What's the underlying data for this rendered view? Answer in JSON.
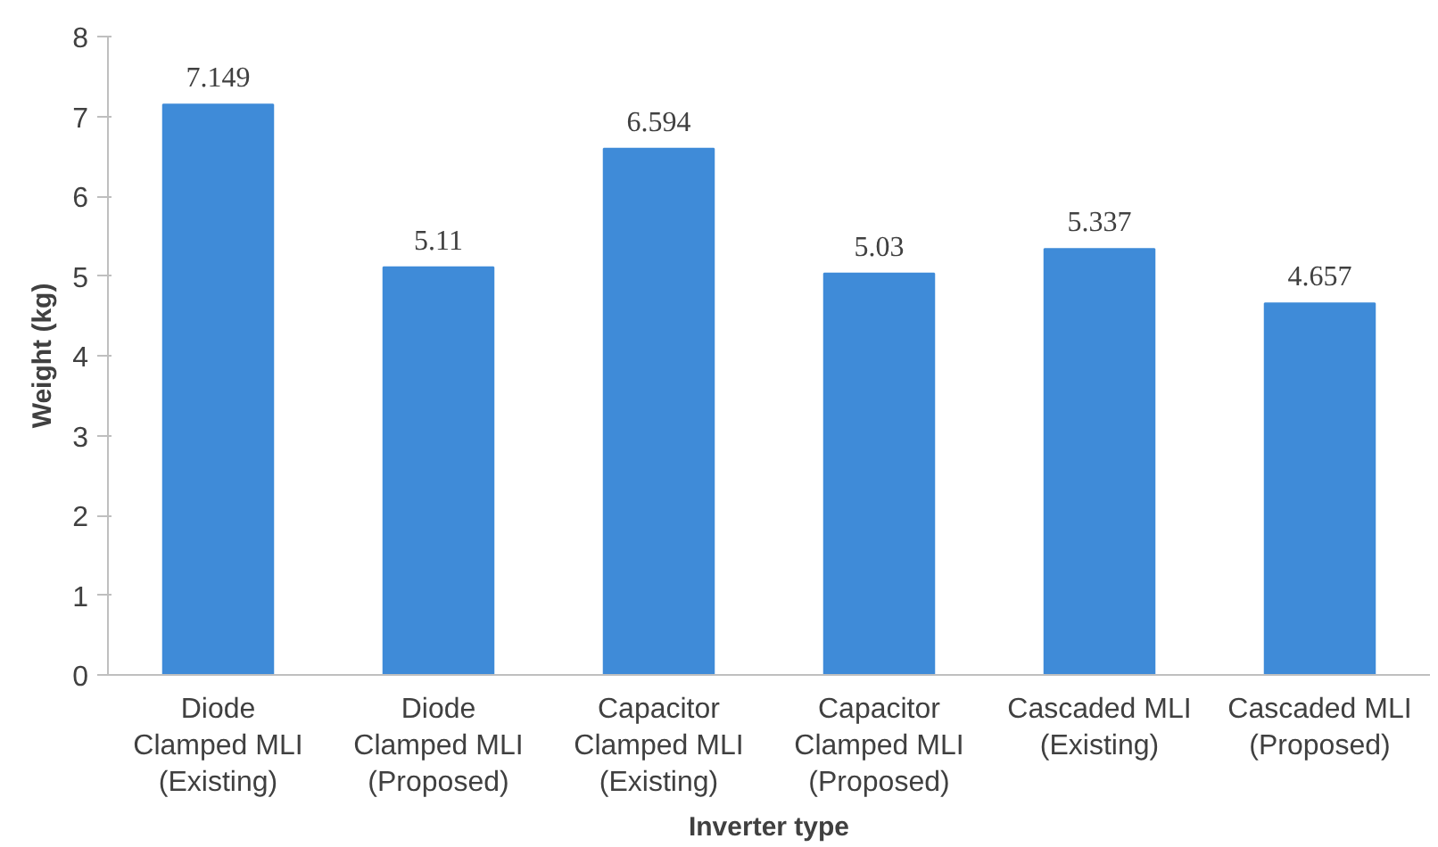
{
  "chart_data": {
    "type": "bar",
    "xlabel": "Inverter type",
    "ylabel": "Weight (kg)",
    "categories": [
      "Diode Clamped MLI (Existing)",
      "Diode Clamped MLI (Proposed)",
      "Capacitor Clamped MLI (Existing)",
      "Capacitor Clamped MLI (Proposed)",
      "Cascaded MLI (Existing)",
      "Cascaded MLI (Proposed)"
    ],
    "values": [
      7.149,
      5.11,
      6.594,
      5.03,
      5.337,
      4.657
    ],
    "color": "#3f8bd8",
    "ylim": [
      0,
      8
    ],
    "yticks": [
      0,
      1,
      2,
      3,
      4,
      5,
      6,
      7,
      8
    ],
    "grid": false,
    "data_labels": true
  }
}
